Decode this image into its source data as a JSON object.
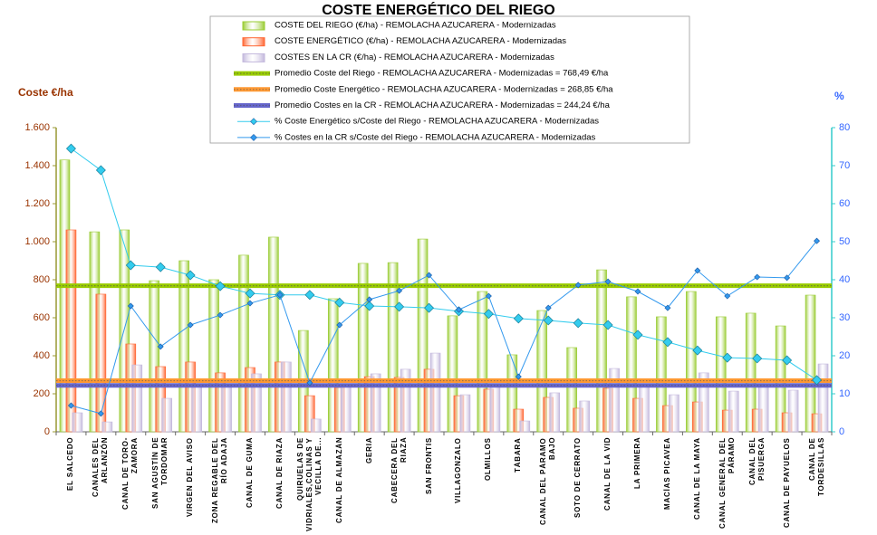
{
  "chart_data": {
    "type": "bar",
    "title": "COSTE ENERGÉTICO DEL RIEGO",
    "y_axis_label": "Coste €/ha",
    "y2_axis_label": "%",
    "categories": [
      "EL SALCEDO",
      "CANALES DEL ARLANZÓN",
      "CANAL DE TORO-ZAMORA",
      "SAN AGUSTÍN DE TORDOMAR",
      "VIRGEN DEL AVISO",
      "ZONA REGABLE DEL RÍO ADAJA",
      "CANAL DE GUMA",
      "CANAL DE RIAZA",
      "QUIRUELAS DE VIDRIALES,COLINAS Y VECILLA DE...",
      "CANAL DE ALMAZÁN",
      "GERIA",
      "CABECERA DEL RIAZA",
      "SAN FRONTIS",
      "VILLAGONZALO",
      "OLMILLOS",
      "TÁBARA",
      "CANAL DEL PÁRAMO BAJO",
      "SOTO DE CERRATO",
      "CANAL DE LA VID",
      "LA PRIMERA",
      "MACÍAS PICAVEA",
      "CANAL DE LA MAYA",
      "CANAL GENERAL DEL PÁRAMO",
      "CANAL DEL PISUERGA",
      "CANAL DE PAYUELOS",
      "CANAL DE TORDESILLAS"
    ],
    "series": [
      {
        "type": "bar",
        "name": "COSTE DEL RIEGO (€/ha) - REMOLACHA AZUCARERA - Modernizadas",
        "color": "#99cc33",
        "values": [
          1430,
          1052,
          1062,
          795,
          900,
          800,
          929,
          1024,
          533,
          700,
          886,
          890,
          1014,
          610,
          738,
          405,
          638,
          443,
          852,
          710,
          605,
          738,
          605,
          624,
          557,
          719
        ]
      },
      {
        "type": "bar",
        "name": "COSTE ENERGÉTICO (€/ha) - REMOLACHA AZUCARERA - Modernizadas",
        "color": "#ff6633",
        "values": [
          1062,
          724,
          462,
          343,
          367,
          310,
          338,
          367,
          190,
          233,
          290,
          286,
          329,
          190,
          224,
          119,
          181,
          124,
          229,
          176,
          138,
          157,
          114,
          119,
          100,
          95
        ]
      },
      {
        "type": "bar",
        "name": "COSTES EN LA CR (€/ha) - REMOLACHA AZUCARERA - Modernizadas",
        "color": "#c3b8dc",
        "values": [
          100,
          52,
          352,
          176,
          238,
          238,
          305,
          367,
          67,
          238,
          305,
          329,
          414,
          195,
          252,
          57,
          205,
          162,
          333,
          238,
          195,
          310,
          214,
          238,
          219,
          357
        ]
      },
      {
        "type": "hline",
        "name": "Promedio Coste del Riego - REMOLACHA AZUCARERA - Modernizadas = 768,49 €/ha",
        "color": "#99cc00",
        "value": 768.49
      },
      {
        "type": "hline",
        "name": "Promedio Coste Energético - REMOLACHA AZUCARERA - Modernizadas = 268,85 €/ha",
        "color": "#ff9933",
        "value": 268.85
      },
      {
        "type": "hline",
        "name": "Promedio Costes en la CR - REMOLACHA AZUCARERA - Modernizadas = 244,24 €/ha",
        "color": "#6666cc",
        "value": 244.24
      },
      {
        "type": "line",
        "axis": "y2",
        "name": "% Coste Energético s/Coste del Riego - REMOLACHA AZUCARERA - Modernizadas",
        "color": "#33ccee",
        "values": [
          74.5,
          68.8,
          43.8,
          43.3,
          41.2,
          38.3,
          36.4,
          36.0,
          36.0,
          34.0,
          33.1,
          32.9,
          32.6,
          31.7,
          31.0,
          29.8,
          29.3,
          28.6,
          28.1,
          25.5,
          23.6,
          21.4,
          19.5,
          19.3,
          18.8,
          13.6
        ]
      },
      {
        "type": "line",
        "axis": "y2",
        "name": "% Costes en la CR s/Coste del Riego - REMOLACHA AZUCARERA - Modernizadas",
        "color": "#3399ee",
        "values": [
          6.9,
          4.8,
          33.1,
          22.4,
          28.1,
          30.7,
          33.8,
          36.0,
          12.9,
          28.1,
          34.8,
          37.1,
          41.2,
          32.1,
          35.7,
          14.5,
          32.6,
          38.6,
          39.5,
          36.9,
          32.6,
          42.4,
          35.7,
          40.7,
          40.5,
          50.2
        ]
      }
    ],
    "ylim": [
      0,
      1600
    ],
    "yticks": [
      0,
      200,
      400,
      600,
      800,
      {
        "value": 1000,
        "label": "1.000"
      },
      {
        "value": 1200,
        "label": "1.200"
      },
      {
        "value": 1400,
        "label": "1.400"
      },
      {
        "value": 1600,
        "label": "1.600"
      }
    ],
    "y2lim": [
      0,
      80
    ],
    "y2ticks": [
      0,
      10,
      20,
      30,
      40,
      50,
      60,
      70,
      80
    ]
  }
}
